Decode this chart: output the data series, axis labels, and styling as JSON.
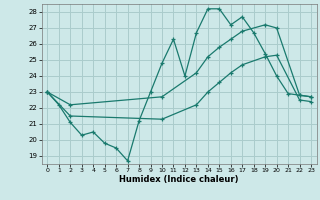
{
  "xlabel": "Humidex (Indice chaleur)",
  "xlim": [
    -0.5,
    23.5
  ],
  "ylim": [
    18.5,
    28.5
  ],
  "xticks": [
    0,
    1,
    2,
    3,
    4,
    5,
    6,
    7,
    8,
    9,
    10,
    11,
    12,
    13,
    14,
    15,
    16,
    17,
    18,
    19,
    20,
    21,
    22,
    23
  ],
  "yticks": [
    19,
    20,
    21,
    22,
    23,
    24,
    25,
    26,
    27,
    28
  ],
  "bg_color": "#cde8e8",
  "grid_color": "#aacccc",
  "line_color": "#1a7a6e",
  "line1_x": [
    0,
    1,
    2,
    3,
    4,
    5,
    6,
    7,
    8,
    9,
    10,
    11,
    12,
    13,
    14,
    15,
    16,
    17,
    18,
    19,
    20,
    21,
    22,
    23
  ],
  "line1_y": [
    23.0,
    22.2,
    21.1,
    20.3,
    20.5,
    19.8,
    19.5,
    18.7,
    21.2,
    23.0,
    24.8,
    26.3,
    24.0,
    26.7,
    28.2,
    28.2,
    27.2,
    27.7,
    26.7,
    25.4,
    24.0,
    22.9,
    22.8,
    22.7
  ],
  "line2_x": [
    0,
    2,
    10,
    13,
    14,
    15,
    16,
    17,
    19,
    20,
    22,
    23
  ],
  "line2_y": [
    23.0,
    22.2,
    22.7,
    24.2,
    25.2,
    25.8,
    26.3,
    26.8,
    27.2,
    27.0,
    22.8,
    22.7
  ],
  "line3_x": [
    0,
    2,
    10,
    13,
    14,
    15,
    16,
    17,
    19,
    20,
    22,
    23
  ],
  "line3_y": [
    23.0,
    21.5,
    21.3,
    22.2,
    23.0,
    23.6,
    24.2,
    24.7,
    25.2,
    25.3,
    22.5,
    22.4
  ]
}
